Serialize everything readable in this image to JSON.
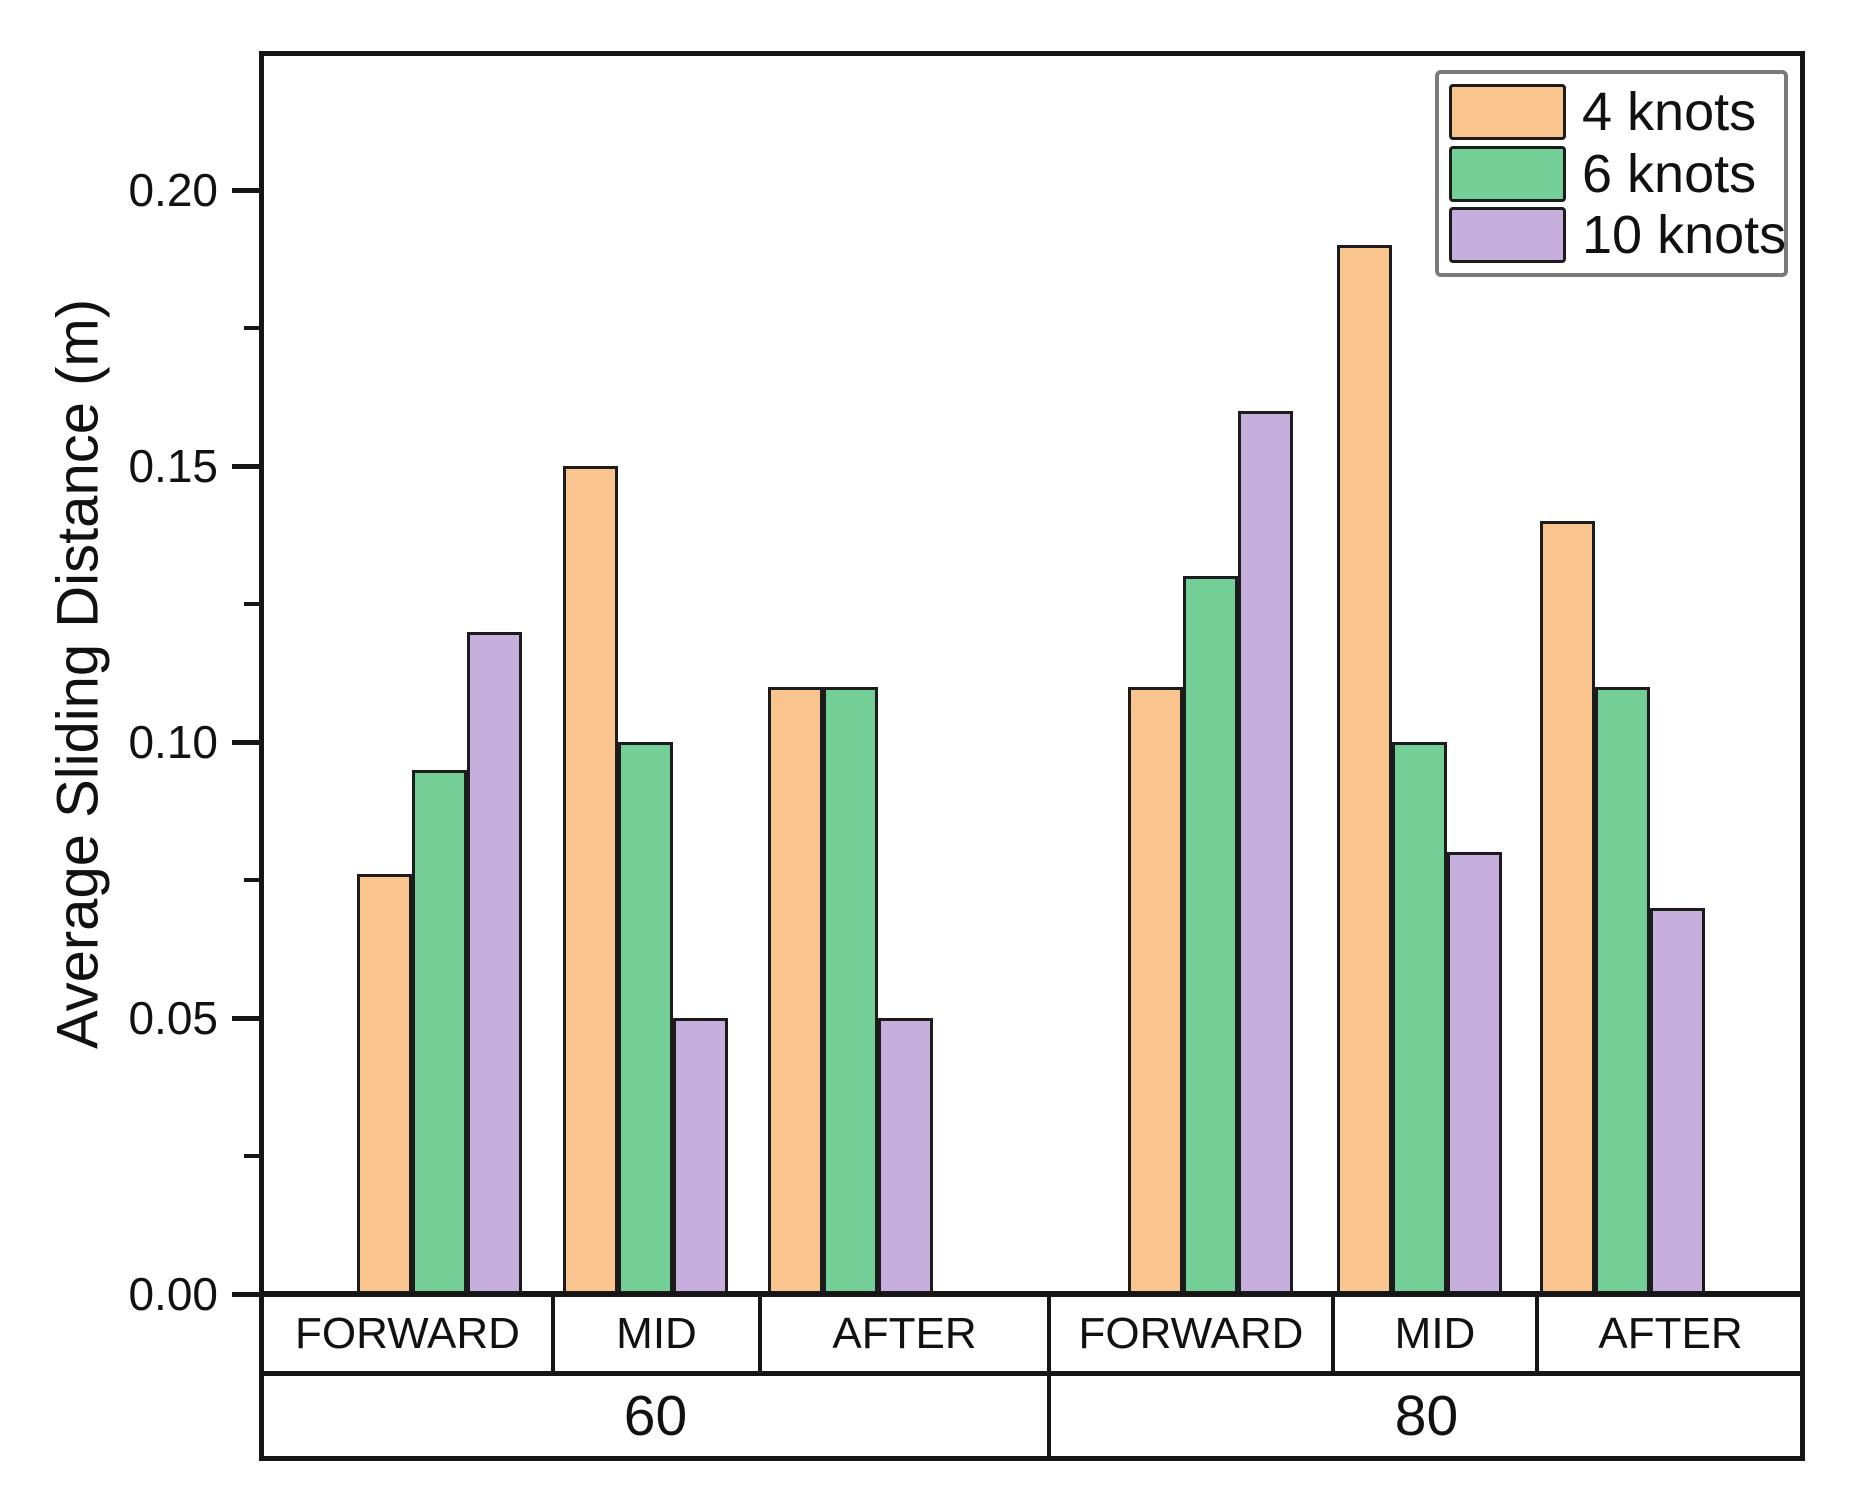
{
  "figure": {
    "y_axis": {
      "title": "Average Sliding Distance (m)",
      "major_ticks": [
        {
          "value": 0.0,
          "label": "0.00"
        },
        {
          "value": 0.05,
          "label": "0.05"
        },
        {
          "value": 0.1,
          "label": "0.10"
        },
        {
          "value": 0.15,
          "label": "0.15"
        },
        {
          "value": 0.2,
          "label": "0.20"
        }
      ],
      "minor_ticks": [
        0.025,
        0.075,
        0.125,
        0.175
      ]
    },
    "x_axis": {
      "category_cells": [
        "FORWARD",
        "MID",
        "AFTER",
        "FORWARD",
        "MID",
        "AFTER"
      ],
      "group_cells": [
        "60",
        "80"
      ]
    },
    "legend": {
      "items": [
        {
          "label": "4 knots",
          "color": "#FAC48E"
        },
        {
          "label": "6 knots",
          "color": "#74CF96"
        },
        {
          "label": "10 knots",
          "color": "#C6AFDC"
        }
      ]
    },
    "colors": {
      "bar_border": "#1c1c1c",
      "frame": "#161616",
      "legend_border": "#7a7a7a",
      "orange": "#FAC48E",
      "green": "#74CF96",
      "purple": "#C6AFDC"
    }
  },
  "chart_data": {
    "type": "bar",
    "title": "",
    "xlabel": "",
    "ylabel": "Average Sliding Distance (m)",
    "ylim": [
      0,
      0.225
    ],
    "ytick_interval": 0.05,
    "minor_tick_interval": 0.025,
    "grid": false,
    "legend_position": "top-right",
    "groups": [
      "60",
      "80"
    ],
    "categories": [
      "FORWARD",
      "MID",
      "AFTER"
    ],
    "category_order": [
      "60-FORWARD",
      "60-MID",
      "60-AFTER",
      "80-FORWARD",
      "80-MID",
      "80-AFTER"
    ],
    "series": [
      {
        "name": "4 knots",
        "color": "#FAC48E",
        "values": [
          0.076,
          0.15,
          0.11,
          0.11,
          0.19,
          0.14
        ]
      },
      {
        "name": "6 knots",
        "color": "#74CF96",
        "values": [
          0.095,
          0.1,
          0.11,
          0.13,
          0.1,
          0.11
        ]
      },
      {
        "name": "10 knots",
        "color": "#C6AFDC",
        "values": [
          0.12,
          0.05,
          0.05,
          0.16,
          0.08,
          0.07
        ]
      }
    ]
  }
}
